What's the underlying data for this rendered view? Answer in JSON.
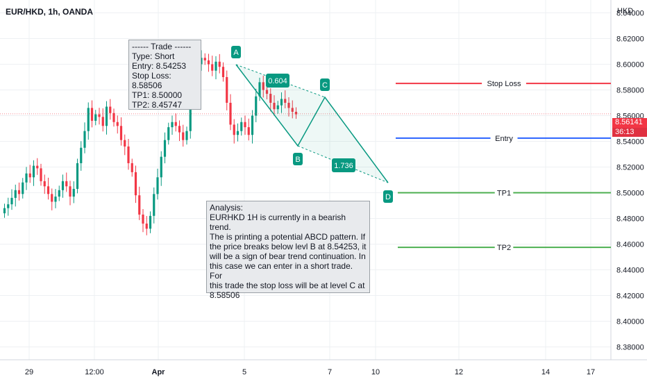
{
  "header": {
    "title": "EUR/HKD, 1h, OANDA",
    "currency": "HKD"
  },
  "price_tag": {
    "price": "8.56141",
    "countdown": "36:13"
  },
  "trade_box": {
    "text": "------ Trade ------\nType:  Short\nEntry:  8.54253\nStop Loss:  8.58506\nTP1:  8.50000\nTP2:  8.45747"
  },
  "analysis_box": {
    "text": "Analysis:\nEURHKD 1H is currently in a bearish trend.\nThe is printing a potential ABCD pattern. If\nthe price breaks below levl B at 8.54253, it\nwill be a sign of bear trend continuation. In\nthis case we can enter in a short trade. For\nthis trade the stop loss will be at level C at\n8.58506"
  },
  "colors": {
    "up": "#089981",
    "down": "#f23645",
    "stop": "#f23645",
    "entry": "#2962ff",
    "tp": "#4caf50",
    "pattern": "#089981"
  },
  "chart_data": {
    "type": "candlestick",
    "title": "EUR/HKD, 1h, OANDA",
    "ylim": [
      8.37,
      8.65
    ],
    "xlim": [
      0,
      120
    ],
    "y_ticks": [
      "8.64000",
      "8.62000",
      "8.60000",
      "8.58000",
      "8.56000",
      "8.54000",
      "8.52000",
      "8.50000",
      "8.48000",
      "8.46000",
      "8.44000",
      "8.42000",
      "8.40000",
      "8.38000"
    ],
    "x_ticks": [
      {
        "label": "29",
        "x": 6
      },
      {
        "label": "12:00",
        "x": 20
      },
      {
        "label": "Apr",
        "x": 33
      },
      {
        "label": "5",
        "x": 53
      },
      {
        "label": "7",
        "x": 72
      },
      {
        "label": "10",
        "x": 82
      },
      {
        "label": "12",
        "x": 100
      },
      {
        "label": "14",
        "x": 119
      },
      {
        "label": "17",
        "x": 128
      }
    ],
    "closes": [
      8.488,
      8.491,
      8.496,
      8.502,
      8.499,
      8.508,
      8.515,
      8.512,
      8.521,
      8.519,
      8.509,
      8.505,
      8.499,
      8.493,
      8.497,
      8.502,
      8.509,
      8.505,
      8.497,
      8.503,
      8.523,
      8.535,
      8.548,
      8.566,
      8.556,
      8.561,
      8.559,
      8.552,
      8.567,
      8.562,
      8.555,
      8.552,
      8.541,
      8.536,
      8.523,
      8.516,
      8.498,
      8.483,
      8.476,
      8.472,
      8.482,
      8.499,
      8.512,
      8.528,
      8.541,
      8.551,
      8.555,
      8.552,
      8.547,
      8.541,
      8.548,
      8.571,
      8.61,
      8.6,
      8.605,
      8.603,
      8.6,
      8.595,
      8.602,
      8.598,
      8.59,
      8.57,
      8.553,
      8.545,
      8.548,
      8.555,
      8.551,
      8.545,
      8.56,
      8.575,
      8.586,
      8.58,
      8.577,
      8.57,
      8.565,
      8.568,
      8.573,
      8.57,
      8.566,
      8.563,
      8.561
    ],
    "stop_loss": 8.58506,
    "entry": 8.54253,
    "tp1": 8.5,
    "tp2": 8.45747,
    "current_price": 8.56141,
    "level_labels": {
      "stop_loss": "Stop Loss",
      "entry": "Entry",
      "tp1": "TP1",
      "tp2": "TP2"
    },
    "abcd": {
      "A": {
        "label": "A",
        "x": 52,
        "y": 8.613
      },
      "B": {
        "label": "B",
        "x": 65,
        "y": 8.543
      },
      "C": {
        "label": "C",
        "x": 71,
        "y": 8.586
      },
      "D": {
        "label": "D",
        "x": 84,
        "y": 8.513
      }
    },
    "ratios": [
      {
        "label": "0.604",
        "x": 61,
        "y": 8.598
      },
      {
        "label": "1.736",
        "x": 75,
        "y": 8.527
      }
    ]
  }
}
